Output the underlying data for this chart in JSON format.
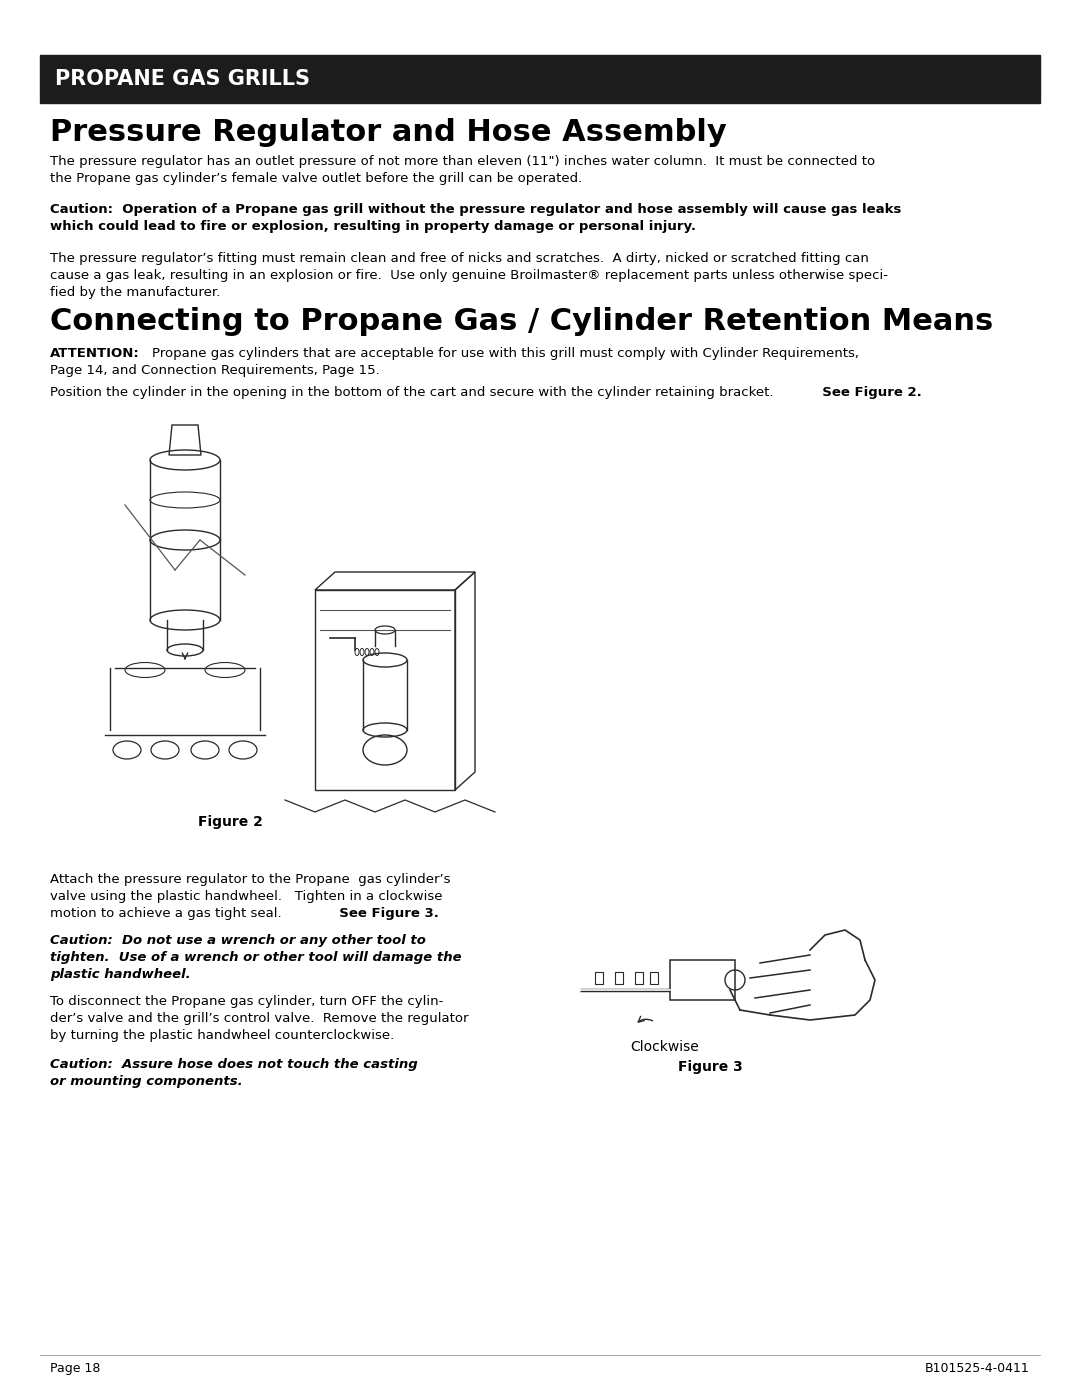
{
  "page_background": "#ffffff",
  "header_bg": "#1c1c1c",
  "header_text": "PROPANE GAS GRILLS",
  "header_text_color": "#ffffff",
  "title1": "Pressure Regulator and Hose Assembly",
  "para1_line1": "The pressure regulator has an outlet pressure of not more than eleven (11\") inches water column.  It must be connected to",
  "para1_line2": "the Propane gas cylinder’s female valve outlet before the grill can be operated.",
  "caution1_line1": "Caution:  Operation of a Propane gas grill without the pressure regulator and hose assembly will cause gas leaks",
  "caution1_line2": "which could lead to fire or explosion, resulting in property damage or personal injury.",
  "para2_line1": "The pressure regulator’s fitting must remain clean and free of nicks and scratches.  A dirty, nicked or scratched fitting can",
  "para2_line2": "cause a gas leak, resulting in an explosion or fire.  Use only genuine Broilmaster® replacement parts unless otherwise speci-",
  "para2_line3": "fied by the manufacturer.",
  "title2": "Connecting to Propane Gas / Cylinder Retention Means",
  "attention_label": "ATTENTION:",
  "attention_text_line1": "    Propane gas cylinders that are acceptable for use with this grill must comply with Cylinder Requirements,",
  "attention_text_line2": "Page 14, and Connection Requirements, Page 15.",
  "para3_normal": "Position the cylinder in the opening in the bottom of the cart and secure with the cylinder retaining bracket.",
  "para3_bold": "  See Figure 2.",
  "figure2_label": "Figure 2",
  "bottom_text1_line1": "Attach the pressure regulator to the Propane  gas cylinder’s",
  "bottom_text1_line2": "valve using the plastic handwheel.   Tighten in a clockwise",
  "bottom_text1_line3": "motion to achieve a gas tight seal.",
  "bottom_text1_bold": "  See Figure 3.",
  "caution2_bold_line1": "Caution:  Do not use a wrench or any other tool to",
  "caution2_bold_line2": "tighten.  Use of a wrench or other tool will damage the",
  "caution2_bold_line3": "plastic handwheel.",
  "bottom_text2_line1": "To disconnect the Propane gas cylinder, turn OFF the cylin-",
  "bottom_text2_line2": "der’s valve and the grill’s control valve.  Remove the regulator",
  "bottom_text2_line3": "by turning the plastic handwheel counterclockwise.",
  "caution3_bold_line1": "Caution:  Assure hose does not touch the casting",
  "caution3_bold_line2": "or mounting components.",
  "clockwise_label": "Clockwise",
  "figure3_label": "Figure 3",
  "footer_left": "Page 18",
  "footer_right": "B101525-4-0411"
}
